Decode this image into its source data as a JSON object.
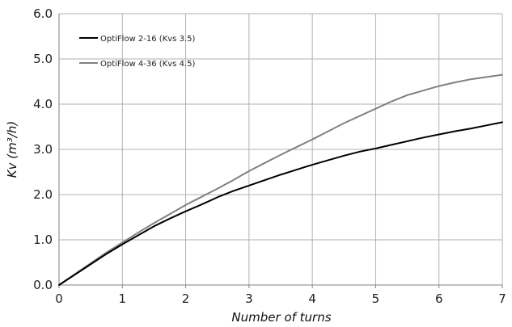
{
  "chart_data": {
    "type": "line",
    "xlabel": "Number of turns",
    "ylabel": "Kv (m³/h)",
    "xlim": [
      0,
      7
    ],
    "ylim": [
      0,
      6
    ],
    "x_ticks": [
      "0",
      "1",
      "2",
      "3",
      "4",
      "5",
      "6",
      "7"
    ],
    "y_ticks": [
      "0.0",
      "1.0",
      "2.0",
      "3.0",
      "4.0",
      "5.0",
      "6.0"
    ],
    "grid": true,
    "legend_position": "top-left",
    "series": [
      {
        "name": "OptiFlow 2-16 (Kvs 3.5)",
        "color": "#000000",
        "x": [
          0,
          0.25,
          0.5,
          0.75,
          1,
          1.25,
          1.5,
          1.75,
          2,
          2.25,
          2.5,
          2.75,
          3,
          3.25,
          3.5,
          3.75,
          4,
          4.25,
          4.5,
          4.75,
          5,
          5.25,
          5.5,
          5.75,
          6,
          6.25,
          6.5,
          6.75,
          7
        ],
        "y": [
          0,
          0.23,
          0.46,
          0.69,
          0.9,
          1.1,
          1.3,
          1.47,
          1.63,
          1.78,
          1.94,
          2.08,
          2.2,
          2.32,
          2.44,
          2.55,
          2.66,
          2.76,
          2.86,
          2.95,
          3.02,
          3.1,
          3.18,
          3.26,
          3.33,
          3.4,
          3.46,
          3.53,
          3.6
        ]
      },
      {
        "name": "OptiFlow 4-36 (Kvs 4.5)",
        "color": "#808080",
        "x": [
          0,
          0.25,
          0.5,
          0.75,
          1,
          1.25,
          1.5,
          1.75,
          2,
          2.25,
          2.5,
          2.75,
          3,
          3.25,
          3.5,
          3.75,
          4,
          4.25,
          4.5,
          4.75,
          5,
          5.25,
          5.5,
          5.75,
          6,
          6.25,
          6.5,
          6.75,
          7
        ],
        "y": [
          0,
          0.24,
          0.48,
          0.72,
          0.94,
          1.16,
          1.37,
          1.57,
          1.77,
          1.95,
          2.13,
          2.32,
          2.52,
          2.7,
          2.88,
          3.05,
          3.22,
          3.4,
          3.58,
          3.74,
          3.9,
          4.06,
          4.2,
          4.3,
          4.4,
          4.48,
          4.55,
          4.6,
          4.65
        ]
      }
    ]
  }
}
